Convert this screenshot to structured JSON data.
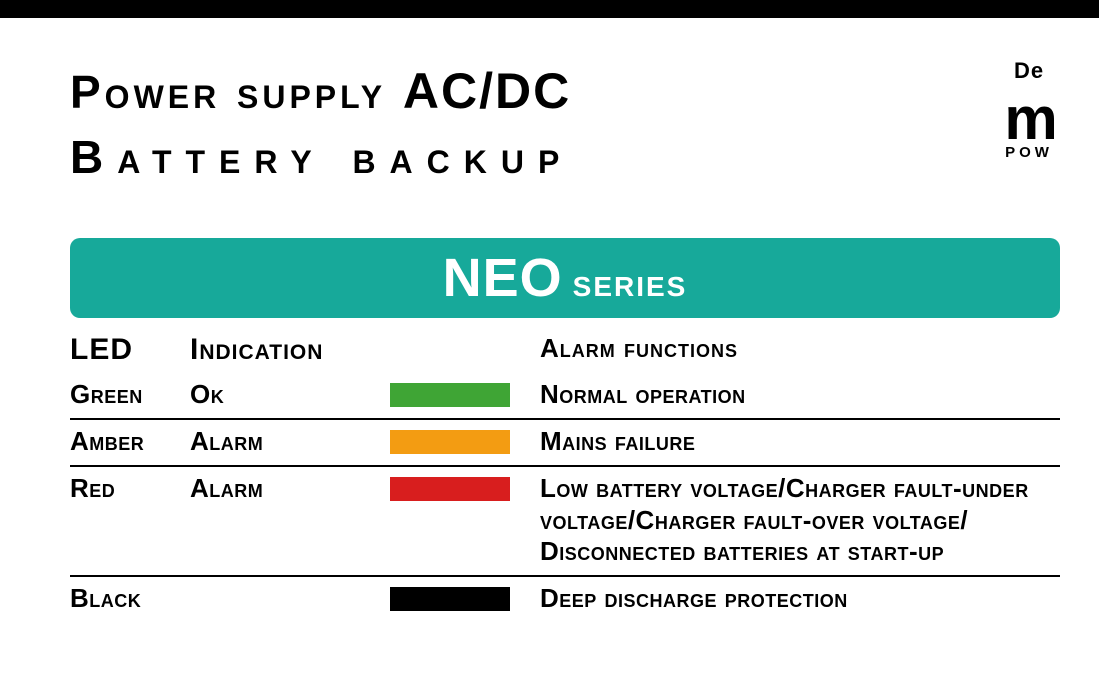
{
  "header": {
    "line1_pre": "Power supply ",
    "line1_big": "AC/DC",
    "line2": "Battery backup"
  },
  "corner": {
    "top": "De",
    "logo": "m",
    "sub": "POW"
  },
  "banner": {
    "big": "NEO",
    "small": "series",
    "bg_color": "#17a99a",
    "text_color": "#ffffff"
  },
  "table": {
    "headers": {
      "led": "LED",
      "indication": "Indication",
      "alarm": "Alarm functions"
    },
    "rows": [
      {
        "led": "Green",
        "indication": "Ok",
        "swatch": "#3fa535",
        "alarm": "Normal operation"
      },
      {
        "led": "Amber",
        "indication": "Alarm",
        "swatch": "#f39c12",
        "alarm": "Mains failure"
      },
      {
        "led": "Red",
        "indication": "Alarm",
        "swatch": "#d81e1e",
        "alarm": "Low battery voltage/Charger fault-under voltage/Charger fault-over voltage/ Disconnected batteries at start-up"
      },
      {
        "led": "Black",
        "indication": "",
        "swatch": "#000000",
        "alarm": "Deep discharge protection"
      }
    ]
  }
}
